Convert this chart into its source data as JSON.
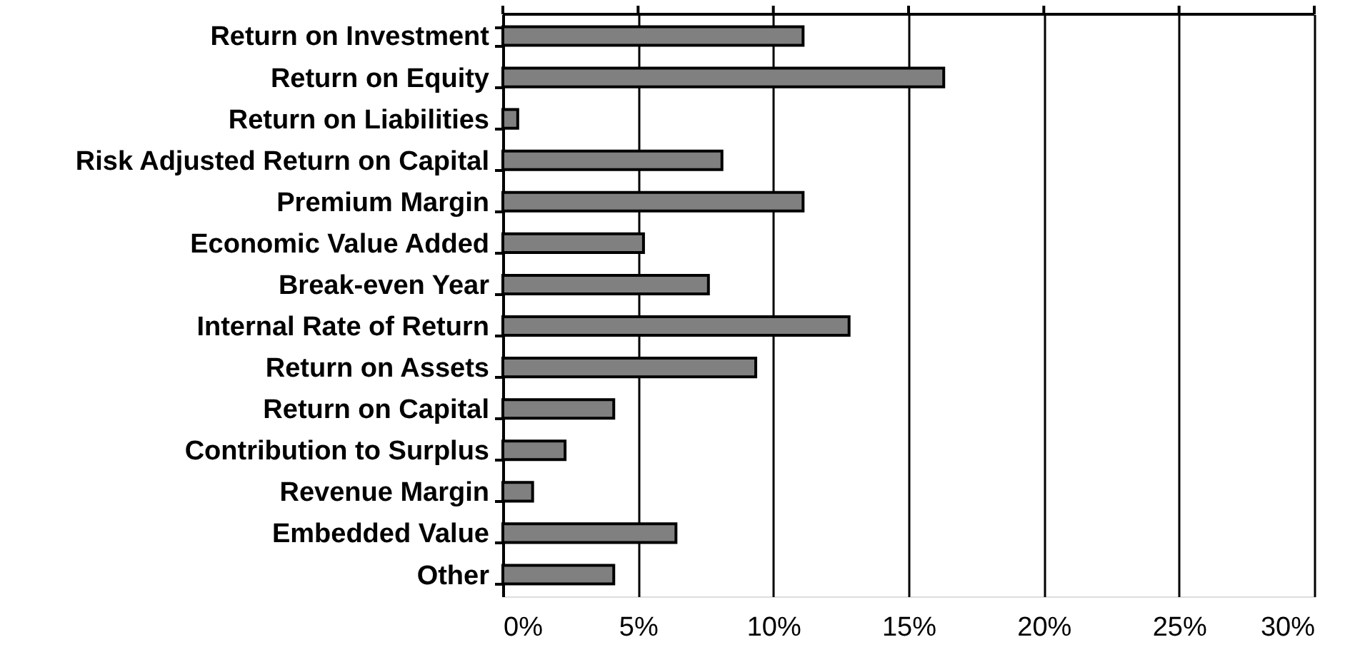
{
  "chart_data": {
    "type": "bar",
    "orientation": "horizontal",
    "categories": [
      "Return on Investment",
      "Return on Equity",
      "Return on Liabilities",
      "Risk Adjusted Return on Capital",
      "Premium Margin",
      "Economic Value Added",
      "Break-even Year",
      "Internal Rate of Return",
      "Return on Assets",
      "Return on Capital",
      "Contribution to Surplus",
      "Revenue Margin",
      "Embedded Value ",
      "Other"
    ],
    "values": [
      11.1,
      16.3,
      0.55,
      8.1,
      11.1,
      5.2,
      7.6,
      12.8,
      9.35,
      4.1,
      2.3,
      1.1,
      6.4,
      4.1
    ],
    "color": "#808080",
    "xlim": [
      0,
      30
    ],
    "xticks": [
      {
        "value": 0,
        "label": "0%"
      },
      {
        "value": 5,
        "label": "5%"
      },
      {
        "value": 10,
        "label": "10%"
      },
      {
        "value": 15,
        "label": "15%"
      },
      {
        "value": 20,
        "label": "20%"
      },
      {
        "value": 25,
        "label": "25%"
      },
      {
        "value": 30,
        "label": "30%"
      }
    ],
    "grid": "x"
  }
}
